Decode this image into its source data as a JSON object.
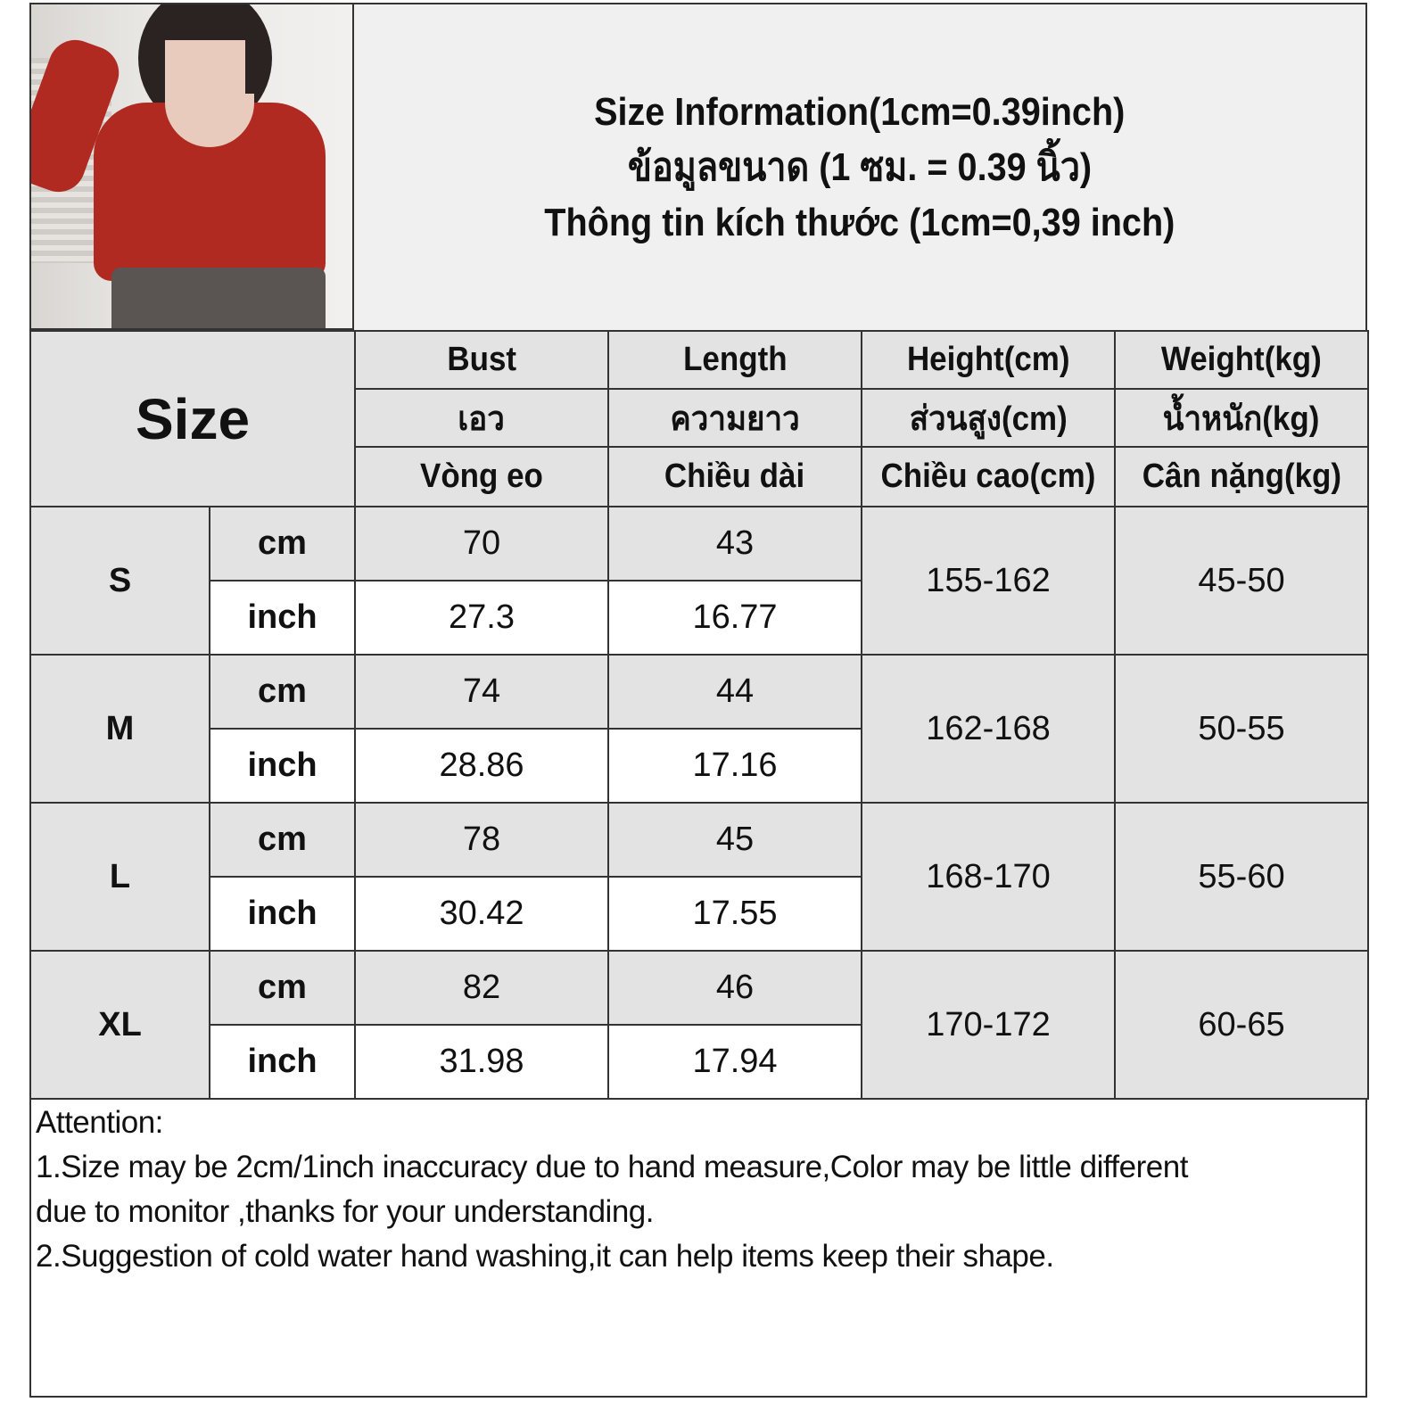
{
  "header": {
    "lines": [
      "Size Information(1cm=0.39inch)",
      "ข้อมูลขนาด (1 ซม. = 0.39 นิ้ว)",
      "Thông tin kích thước (1cm=0,39 inch)"
    ]
  },
  "table": {
    "size_label": "Size",
    "columns": [
      {
        "en": "Bust",
        "th": "เอว",
        "vi": "Vòng eo"
      },
      {
        "en": "Length",
        "th": "ความยาว",
        "vi": "Chiều dài"
      },
      {
        "en": "Height(cm)",
        "th": "ส่วนสูง(cm)",
        "vi": "Chiều cao(cm)"
      },
      {
        "en": "Weight(kg)",
        "th": "น้ำหนัก(kg)",
        "vi": "Cân nặng(kg)"
      }
    ],
    "rows": [
      {
        "size": "S",
        "cm_label": "cm",
        "inch_label": "inch",
        "bust_cm": "70",
        "bust_in": "27.3",
        "length_cm": "43",
        "length_in": "16.77",
        "height": "155-162",
        "weight": "45-50"
      },
      {
        "size": "M",
        "cm_label": "cm",
        "inch_label": "inch",
        "bust_cm": "74",
        "bust_in": "28.86",
        "length_cm": "44",
        "length_in": "17.16",
        "height": "162-168",
        "weight": "50-55"
      },
      {
        "size": "L",
        "cm_label": "cm",
        "inch_label": "inch",
        "bust_cm": "78",
        "bust_in": "30.42",
        "length_cm": "45",
        "length_in": "17.55",
        "height": "168-170",
        "weight": "55-60"
      },
      {
        "size": "XL",
        "cm_label": "cm",
        "inch_label": "inch",
        "bust_cm": "82",
        "bust_in": "31.98",
        "length_cm": "46",
        "length_in": "17.94",
        "height": "170-172",
        "weight": "60-65"
      }
    ]
  },
  "attention": {
    "title": "Attention:",
    "lines": [
      "1.Size may be 2cm/1inch inaccuracy due to hand measure,Color may be little different",
      "due to monitor ,thanks for your understanding.",
      "2.Suggestion of cold water hand washing,it can help items keep their shape."
    ]
  },
  "colors": {
    "header_gray": "#e3e3e3",
    "title_bg": "#f0f0f0",
    "border": "#333333",
    "product_red": "#b02a22"
  }
}
